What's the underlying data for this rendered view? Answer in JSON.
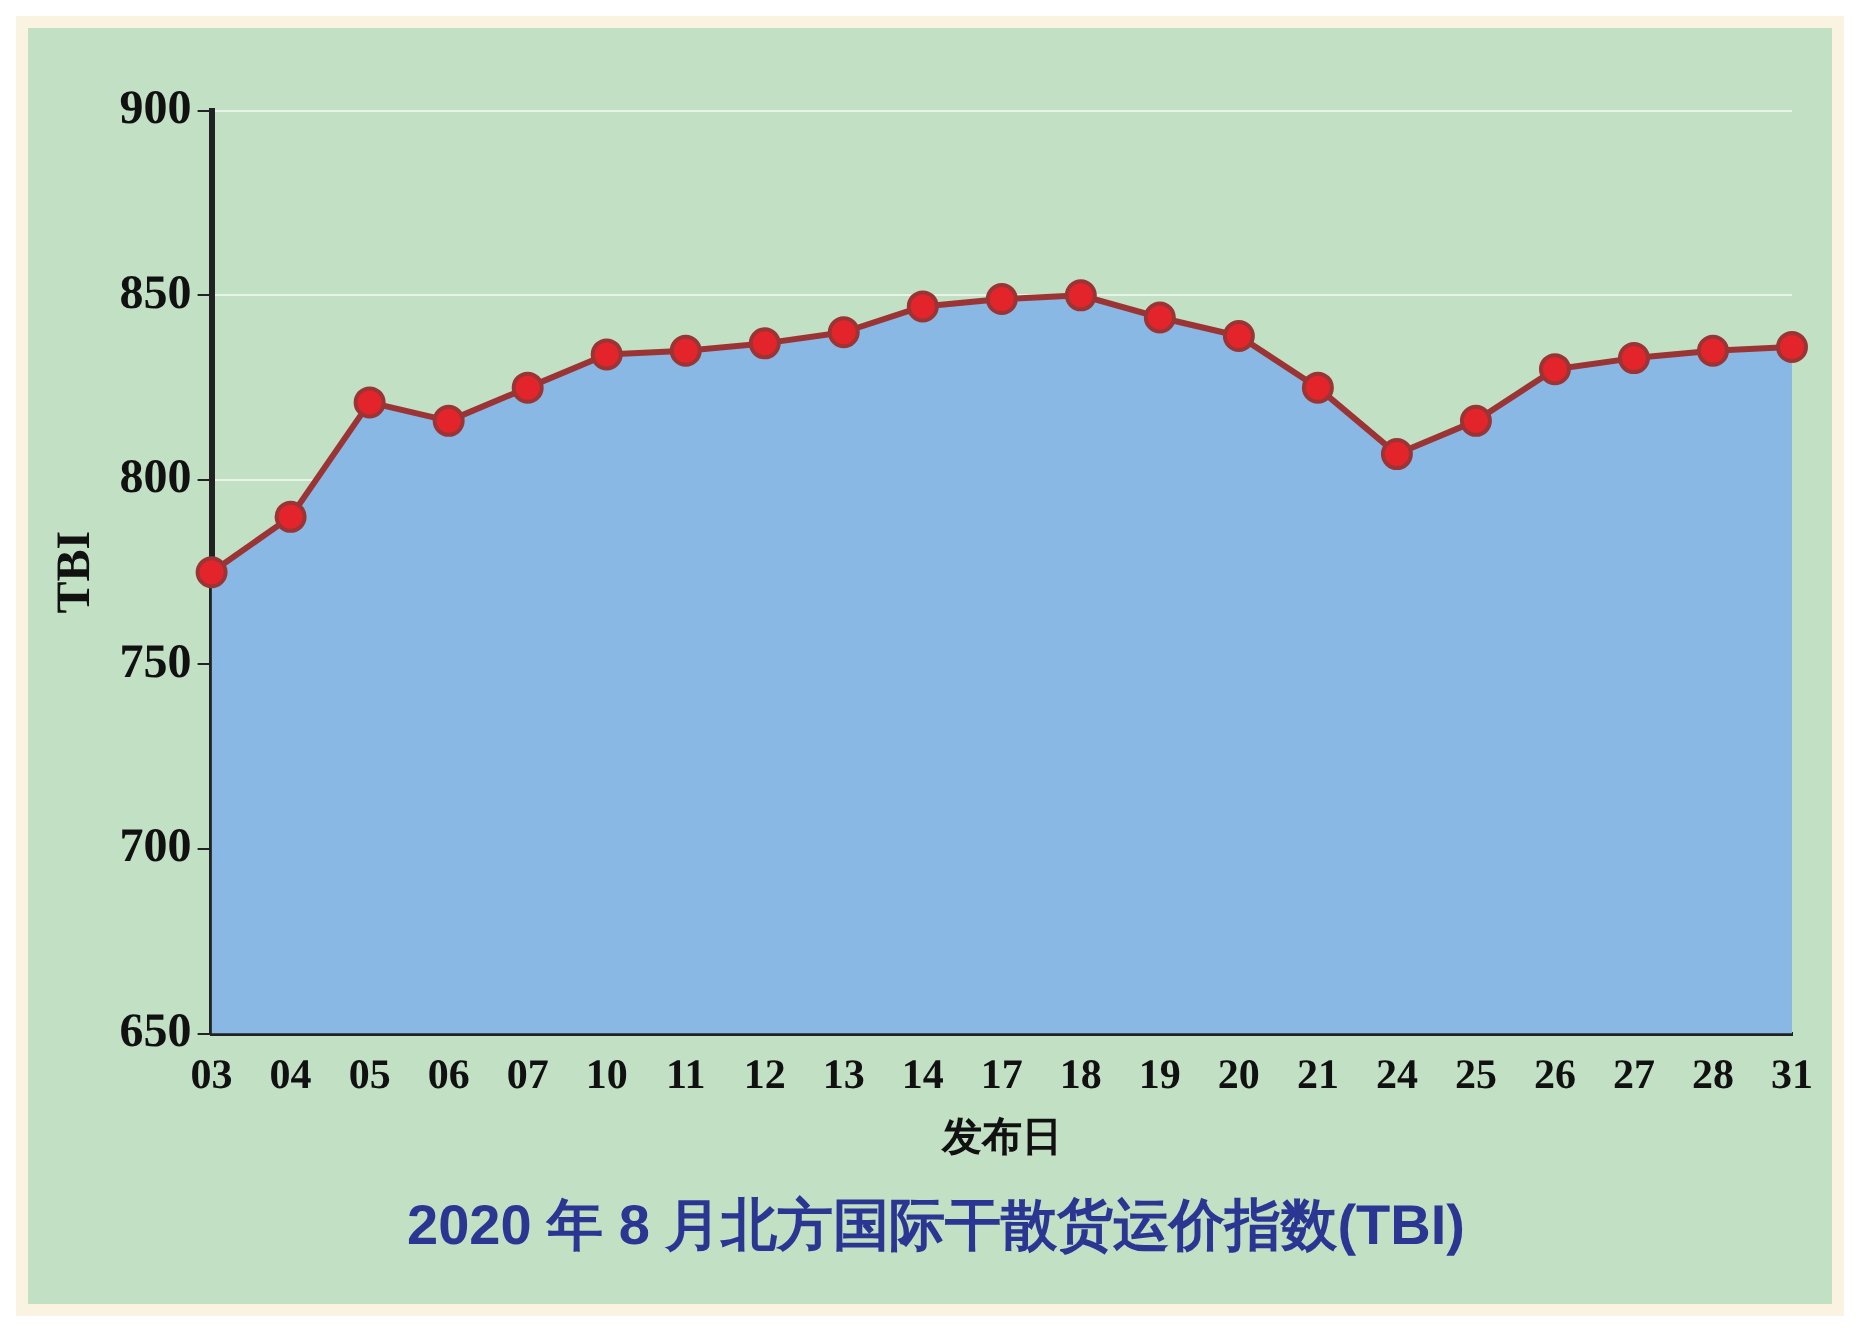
{
  "chart_data": {
    "type": "area",
    "title": "2020 年 8 月北方国际干散货运价指数(TBI)",
    "xlabel": "发布日",
    "ylabel": "TBI",
    "categories": [
      "03",
      "04",
      "05",
      "06",
      "07",
      "10",
      "11",
      "12",
      "13",
      "14",
      "17",
      "18",
      "19",
      "20",
      "21",
      "24",
      "25",
      "26",
      "27",
      "28",
      "31"
    ],
    "series": [
      {
        "color": "#8ab8e4",
        "values": [
          775,
          790,
          821,
          816,
          825,
          834,
          835,
          837,
          840,
          847,
          849,
          850,
          844,
          839,
          825,
          807,
          816,
          830,
          833,
          835,
          836
        ]
      },
      {
        "type": "line",
        "marker": "circle",
        "color": "#9b3535",
        "values": [
          775,
          790,
          821,
          816,
          825,
          834,
          835,
          837,
          840,
          847,
          849,
          850,
          844,
          839,
          825,
          807,
          816,
          830,
          833,
          835,
          836
        ]
      }
    ],
    "ylim": [
      650,
      900
    ],
    "yticks": [
      650,
      700,
      750,
      800,
      850,
      900
    ],
    "grid": "y",
    "legend": false
  }
}
